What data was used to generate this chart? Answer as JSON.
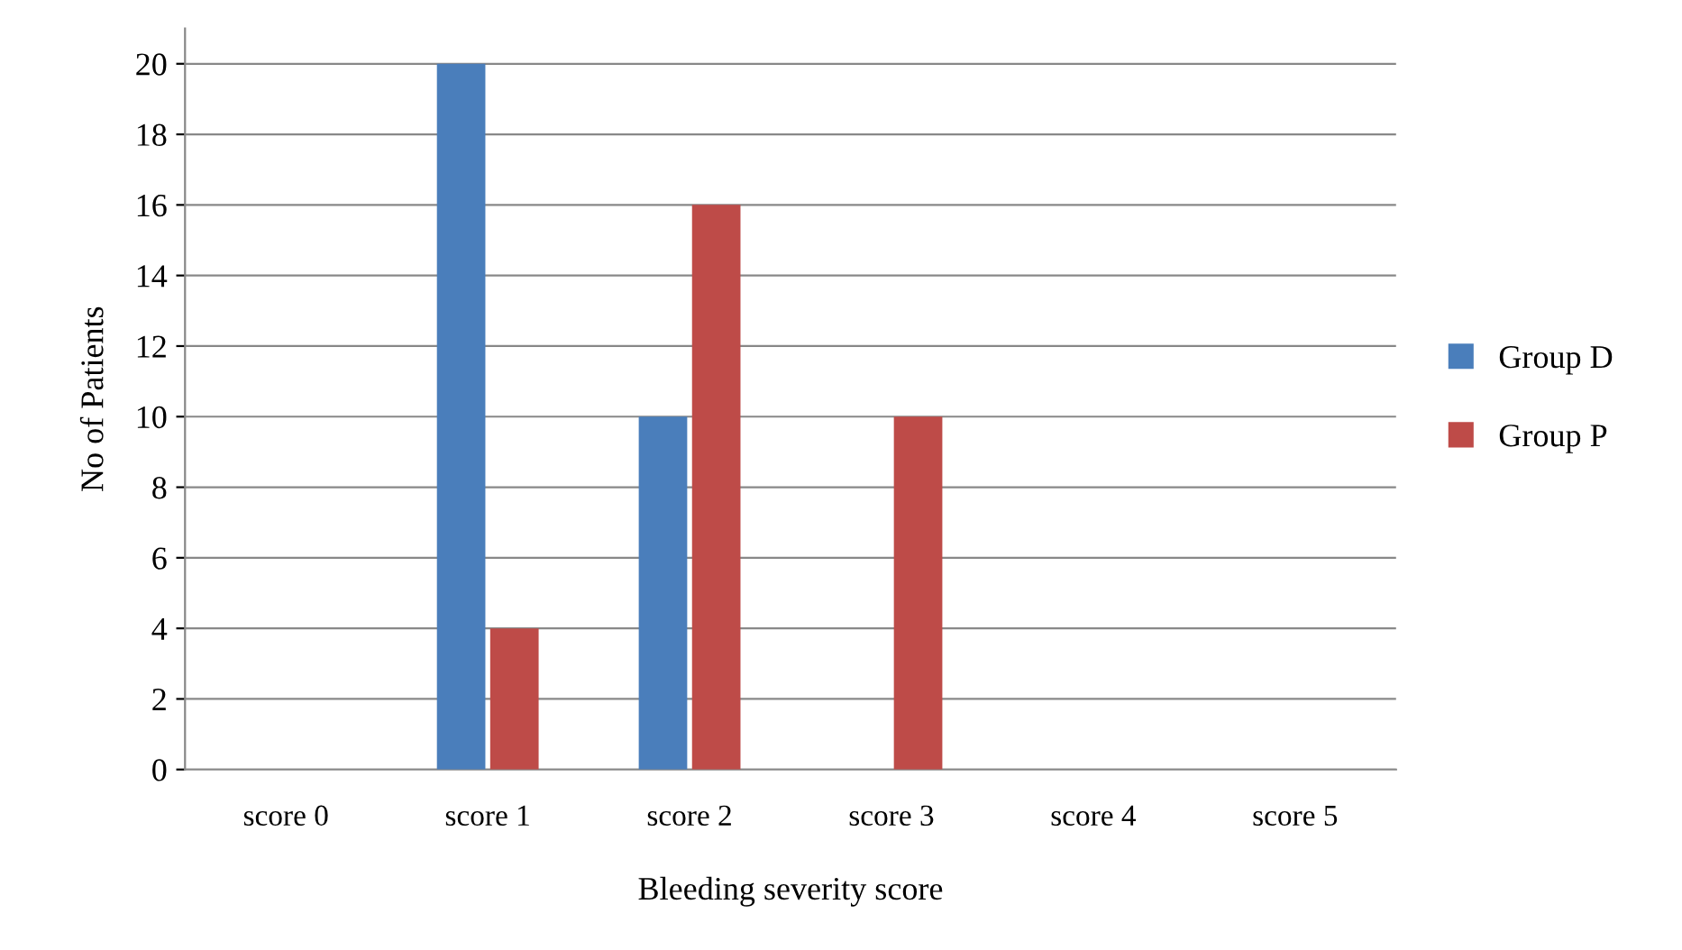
{
  "chart_data": {
    "type": "bar",
    "xlabel": "Bleeding severity score",
    "ylabel": "No of Patients",
    "categories": [
      "score 0",
      "score 1",
      "score 2",
      "score 3",
      "score 4",
      "score 5"
    ],
    "series": [
      {
        "name": "Group D",
        "color": "#4a7ebb",
        "values": [
          0,
          20,
          10,
          0,
          0,
          0
        ]
      },
      {
        "name": "Group P",
        "color": "#be4b48",
        "values": [
          0,
          4,
          16,
          10,
          0,
          0
        ]
      }
    ],
    "ylim": [
      0,
      21
    ],
    "yticks": [
      0,
      2,
      4,
      6,
      8,
      10,
      12,
      14,
      16,
      18,
      20
    ],
    "grid": "y",
    "legend": "right"
  }
}
